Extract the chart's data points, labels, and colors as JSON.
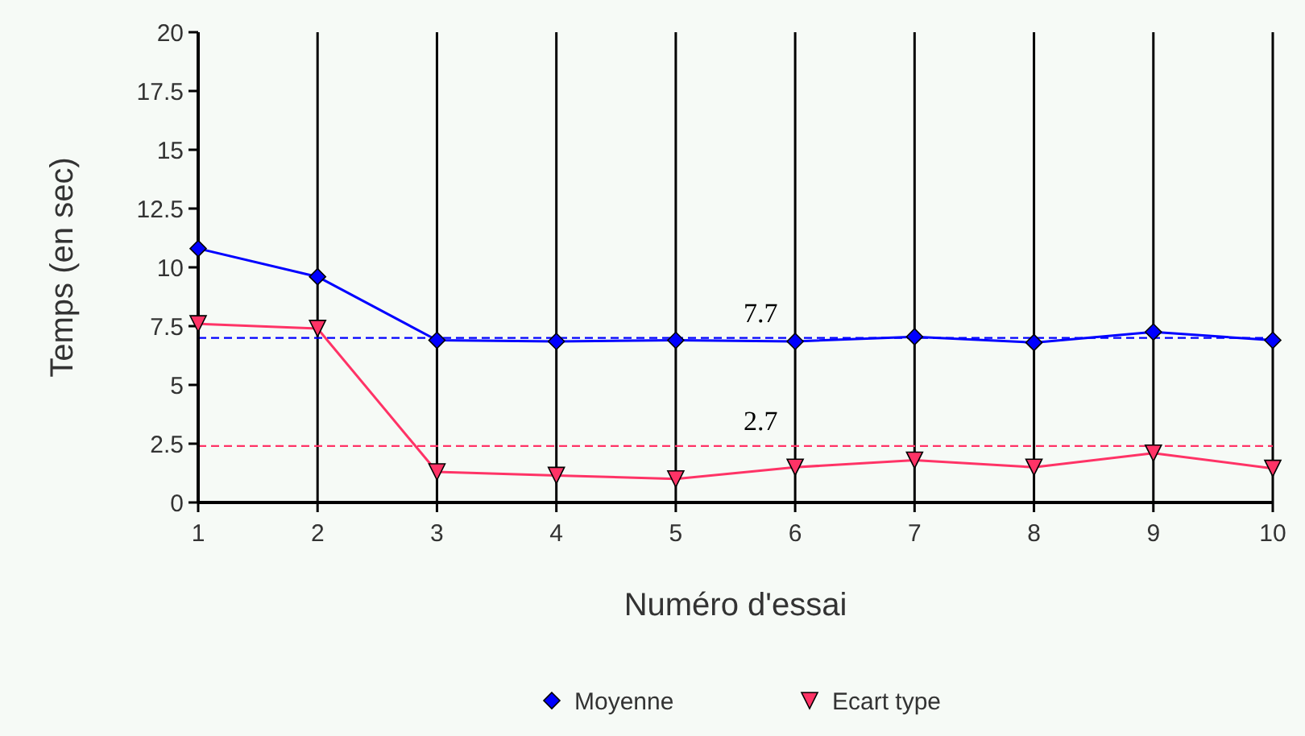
{
  "chart_data": {
    "type": "line",
    "xlabel": "Numéro d'essai",
    "ylabel": "Temps (en sec)",
    "x": [
      1,
      2,
      3,
      4,
      5,
      6,
      7,
      8,
      9,
      10
    ],
    "xlim": [
      1,
      10
    ],
    "xticks": [
      1,
      2,
      3,
      4,
      5,
      6,
      7,
      8,
      9,
      10
    ],
    "ylim": [
      0,
      20
    ],
    "yticks": [
      0,
      2.5,
      5,
      7.5,
      10,
      12.5,
      15,
      17.5,
      20
    ],
    "grid": "x",
    "legend": "bottom",
    "series": [
      {
        "name": "Moyenne",
        "color": "#0000ff",
        "marker": "diamond",
        "values": [
          10.8,
          9.6,
          6.9,
          6.85,
          6.9,
          6.85,
          7.05,
          6.8,
          7.25,
          6.9
        ]
      },
      {
        "name": "Ecart type",
        "color": "#ff3366",
        "marker": "triangle",
        "values": [
          7.6,
          7.4,
          1.3,
          1.15,
          1.0,
          1.5,
          1.8,
          1.5,
          2.1,
          1.45
        ]
      }
    ],
    "ref_lines": [
      {
        "axis": "y",
        "value": 7.0,
        "color": "#0000ff",
        "line_style": "dashed"
      },
      {
        "axis": "y",
        "value": 2.4,
        "color": "#ff3366",
        "line_style": "dashed"
      }
    ],
    "annotations": [
      "7.7",
      "2.7"
    ]
  }
}
